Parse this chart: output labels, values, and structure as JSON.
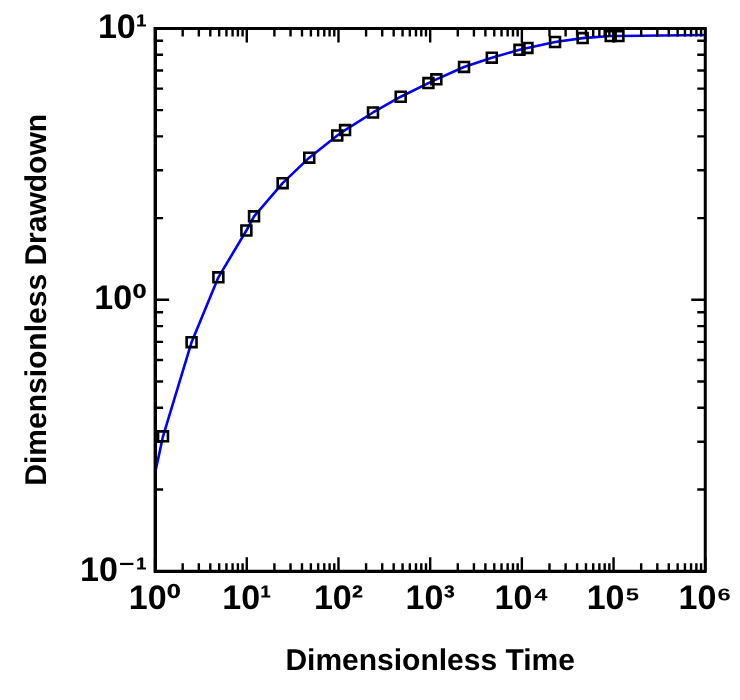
{
  "chart_data": {
    "type": "scatter",
    "xlabel": "Dimensionless Time",
    "ylabel": "Dimensionless Drawdown",
    "log": "xy",
    "grid": false,
    "legend": false,
    "xlim": [
      1,
      1000000
    ],
    "ylim": [
      0.1,
      10
    ],
    "xticks": [
      {
        "value": 1,
        "label": "10⁰"
      },
      {
        "value": 2,
        "label": null
      },
      {
        "value": 3,
        "label": null
      },
      {
        "value": 4,
        "label": null
      },
      {
        "value": 5,
        "label": null
      },
      {
        "value": 6,
        "label": null
      },
      {
        "value": 7,
        "label": null
      },
      {
        "value": 8,
        "label": null
      },
      {
        "value": 9,
        "label": null
      },
      {
        "value": 10,
        "label": "10¹"
      },
      {
        "value": 20,
        "label": null
      },
      {
        "value": 30,
        "label": null
      },
      {
        "value": 40,
        "label": null
      },
      {
        "value": 50,
        "label": null
      },
      {
        "value": 60,
        "label": null
      },
      {
        "value": 70,
        "label": null
      },
      {
        "value": 80,
        "label": null
      },
      {
        "value": 90,
        "label": null
      },
      {
        "value": 100,
        "label": "10²"
      },
      {
        "value": 200,
        "label": null
      },
      {
        "value": 300,
        "label": null
      },
      {
        "value": 400,
        "label": null
      },
      {
        "value": 500,
        "label": null
      },
      {
        "value": 600,
        "label": null
      },
      {
        "value": 700,
        "label": null
      },
      {
        "value": 800,
        "label": null
      },
      {
        "value": 900,
        "label": null
      },
      {
        "value": 1000,
        "label": "10³"
      },
      {
        "value": 2000,
        "label": null
      },
      {
        "value": 3000,
        "label": null
      },
      {
        "value": 4000,
        "label": null
      },
      {
        "value": 5000,
        "label": null
      },
      {
        "value": 6000,
        "label": null
      },
      {
        "value": 7000,
        "label": null
      },
      {
        "value": 8000,
        "label": null
      },
      {
        "value": 9000,
        "label": null
      },
      {
        "value": 10000,
        "label": "10⁴"
      },
      {
        "value": 20000,
        "label": null
      },
      {
        "value": 30000,
        "label": null
      },
      {
        "value": 40000,
        "label": null
      },
      {
        "value": 50000,
        "label": null
      },
      {
        "value": 60000,
        "label": null
      },
      {
        "value": 70000,
        "label": null
      },
      {
        "value": 80000,
        "label": null
      },
      {
        "value": 90000,
        "label": null
      },
      {
        "value": 100000,
        "label": "10⁵"
      },
      {
        "value": 200000,
        "label": null
      },
      {
        "value": 300000,
        "label": null
      },
      {
        "value": 400000,
        "label": null
      },
      {
        "value": 500000,
        "label": null
      },
      {
        "value": 600000,
        "label": null
      },
      {
        "value": 700000,
        "label": null
      },
      {
        "value": 800000,
        "label": null
      },
      {
        "value": 900000,
        "label": null
      },
      {
        "value": 1000000,
        "label": "10⁶"
      }
    ],
    "yticks": [
      {
        "value": 0.1,
        "label": "10⁻¹"
      },
      {
        "value": 0.2,
        "label": null
      },
      {
        "value": 0.3,
        "label": null
      },
      {
        "value": 0.4,
        "label": null
      },
      {
        "value": 0.5,
        "label": null
      },
      {
        "value": 0.6,
        "label": null
      },
      {
        "value": 0.7,
        "label": null
      },
      {
        "value": 0.8,
        "label": null
      },
      {
        "value": 0.9,
        "label": null
      },
      {
        "value": 1,
        "label": "10⁰"
      },
      {
        "value": 2,
        "label": null
      },
      {
        "value": 3,
        "label": null
      },
      {
        "value": 4,
        "label": null
      },
      {
        "value": 5,
        "label": null
      },
      {
        "value": 6,
        "label": null
      },
      {
        "value": 7,
        "label": null
      },
      {
        "value": 8,
        "label": null
      },
      {
        "value": 9,
        "label": null
      },
      {
        "value": 10,
        "label": "10¹"
      }
    ],
    "series": [
      {
        "type": "line",
        "color": "#0000ff",
        "marker": "none",
        "x": [
          1,
          1.22,
          2.5,
          4.9,
          9.9,
          12,
          24.6,
          48,
          97,
          118,
          238,
          477,
          957,
          1167,
          2340,
          4700,
          9420,
          11500,
          23000,
          46000,
          93000,
          113000,
          1000000
        ],
        "values": [
          0.23,
          0.314,
          0.698,
          1.21,
          1.8,
          2.03,
          2.69,
          3.34,
          4.03,
          4.22,
          4.9,
          5.6,
          6.29,
          6.49,
          7.21,
          7.8,
          8.34,
          8.47,
          8.91,
          9.21,
          9.37,
          9.38,
          9.45
        ]
      },
      {
        "type": "scatter",
        "color": "#000000",
        "marker": "square",
        "x": [
          1.22,
          2.5,
          4.9,
          9.9,
          12,
          24.6,
          48,
          97,
          118,
          238,
          477,
          957,
          1167,
          2340,
          4700,
          9420,
          11500,
          23000,
          46000,
          93000,
          113000
        ],
        "values": [
          0.314,
          0.698,
          1.21,
          1.8,
          2.03,
          2.69,
          3.34,
          4.03,
          4.22,
          4.9,
          5.6,
          6.29,
          6.49,
          7.21,
          7.8,
          8.34,
          8.47,
          8.91,
          9.21,
          9.37,
          9.37
        ]
      }
    ]
  }
}
